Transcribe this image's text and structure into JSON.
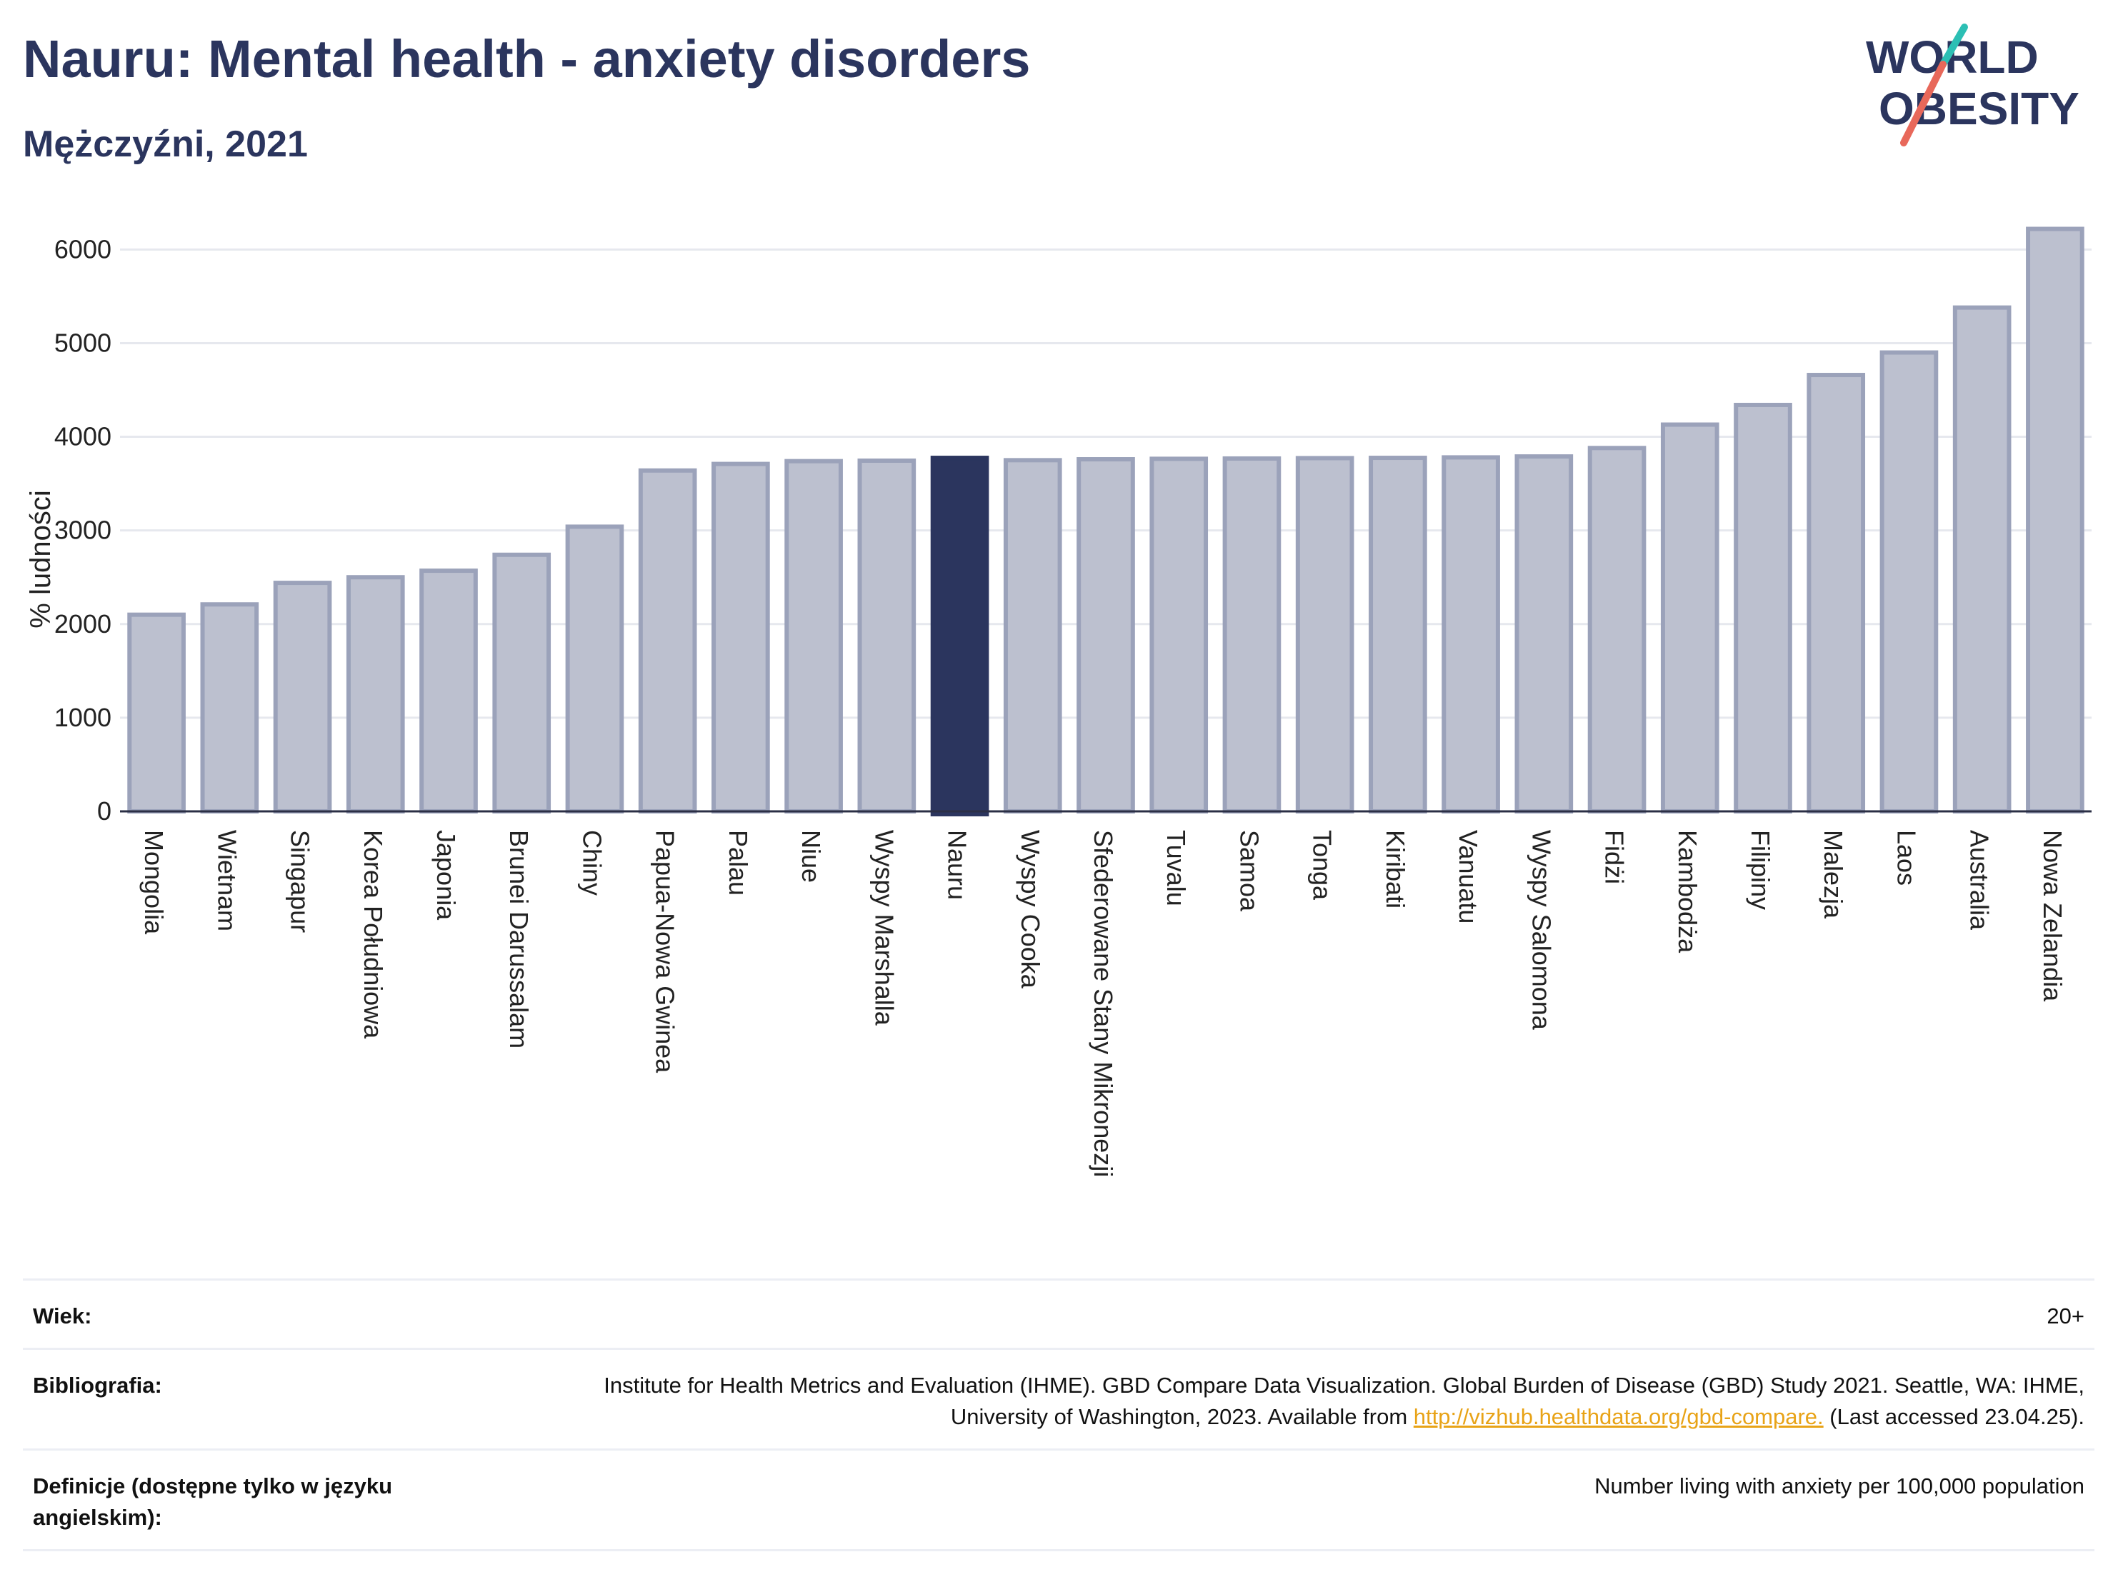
{
  "title": "Nauru: Mental health - anxiety disorders",
  "subtitle": "Mężczyźni, 2021",
  "logo": {
    "line1": "WORLD",
    "line2": "OBESITY"
  },
  "colors": {
    "bar": "#bcc0cf",
    "bar_edge": "#9ba2ba",
    "highlight": "#2b355e",
    "grid": "#e6e8ee"
  },
  "chart_data": {
    "type": "bar",
    "ylabel": "% ludności",
    "ylim": [
      0,
      6300
    ],
    "yticks": [
      0,
      1000,
      2000,
      3000,
      4000,
      5000,
      6000
    ],
    "grid": true,
    "highlight": "Nauru",
    "categories": [
      "Mongolia",
      "Wietnam",
      "Singapur",
      "Korea Południowa",
      "Japonia",
      "Brunei Darussalam",
      "Chiny",
      "Papua-Nowa Gwinea",
      "Palau",
      "Niue",
      "Wyspy Marshalla",
      "Nauru",
      "Wyspy Cooka",
      "Sfederowane Stany Mikronezji",
      "Tuvalu",
      "Samoa",
      "Tonga",
      "Kiribati",
      "Vanuatu",
      "Wyspy Salomona",
      "Fidżi",
      "Kambodża",
      "Filipiny",
      "Malezja",
      "Laos",
      "Australia",
      "Nowa Zelandia"
    ],
    "values": [
      2100,
      2210,
      2440,
      2500,
      2570,
      2740,
      3040,
      3640,
      3710,
      3740,
      3745,
      3775,
      3750,
      3760,
      3765,
      3768,
      3772,
      3775,
      3780,
      3790,
      3880,
      4130,
      4340,
      4660,
      4900,
      5380,
      6220
    ]
  },
  "info": {
    "age_label": "Wiek:",
    "age_value": "20+",
    "biblio_label": "Bibliografia:",
    "biblio_text": "Institute for Health Metrics and Evaluation (IHME). GBD Compare Data Visualization. Global Burden of Disease (GBD) Study 2021. Seattle, WA: IHME, University of Washington, 2023. Available from ",
    "biblio_link": "http://vizhub.healthdata.org/gbd-compare.",
    "biblio_tail": " (Last accessed 23.04.25).",
    "def_label": "Definicje (dostępne tylko w języku angielskim):",
    "def_value": "Number living with anxiety per 100,000 population"
  }
}
